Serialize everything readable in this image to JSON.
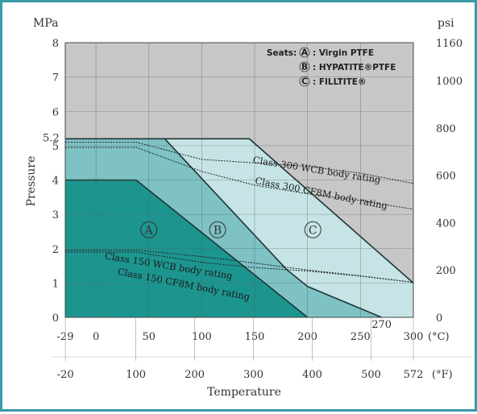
{
  "chart_data": {
    "type": "area",
    "ylabel": "Pressure",
    "xlabel": "Temperature",
    "y_unit_left": "MPa",
    "y_unit_right": "psi",
    "x_unit_top": "(°C)",
    "x_unit_bottom": "(°F)",
    "xlim": [
      -29,
      300
    ],
    "ylim": [
      0,
      8
    ],
    "x_ticks_c": [
      -29,
      0,
      50,
      100,
      150,
      200,
      250,
      300
    ],
    "x_ticks_f": [
      -20,
      100,
      200,
      300,
      400,
      500,
      572
    ],
    "y_ticks_mpa": [
      0,
      1,
      2,
      3,
      4,
      5,
      6,
      7,
      8
    ],
    "y_ticks_psi": [
      0,
      200,
      400,
      600,
      800,
      1000,
      1160
    ],
    "note_270": "270",
    "note_52": "5.2",
    "grid": true,
    "legend_title": "Seats:",
    "legend": [
      {
        "key": "A",
        "label": "Virgin PTFE"
      },
      {
        "key": "B",
        "label": "HYPATITE®PTFE"
      },
      {
        "key": "C",
        "label": "FILLTITE®"
      }
    ],
    "series": [
      {
        "name": "A",
        "color": "#1d958f",
        "x": [
          -29,
          38,
          200
        ],
        "y": [
          4.0,
          4.0,
          0.0
        ]
      },
      {
        "name": "B",
        "color": "#7ec2c4",
        "x": [
          -29,
          65,
          180,
          200,
          270
        ],
        "y": [
          5.2,
          5.2,
          1.4,
          0.9,
          0.0
        ]
      },
      {
        "name": "C",
        "color": "#c6e4e6",
        "x": [
          -29,
          145,
          300
        ],
        "y": [
          5.2,
          5.2,
          1.0
        ]
      }
    ],
    "ratings": [
      {
        "name": "Class 300 WCB body rating",
        "x": [
          -29,
          38,
          100,
          150,
          200,
          250,
          300
        ],
        "y": [
          5.1,
          5.1,
          4.6,
          4.5,
          4.4,
          4.2,
          3.9
        ]
      },
      {
        "name": "Class 300 CF8M body rating",
        "x": [
          -29,
          38,
          100,
          150,
          200,
          250,
          300
        ],
        "y": [
          4.95,
          4.95,
          4.25,
          3.85,
          3.6,
          3.4,
          3.15
        ]
      },
      {
        "name": "Class 150 WCB body rating",
        "x": [
          -29,
          38,
          100,
          150,
          200,
          250,
          300
        ],
        "y": [
          1.96,
          1.96,
          1.77,
          1.58,
          1.38,
          1.21,
          1.02
        ]
      },
      {
        "name": "Class 150 CF8M body rating",
        "x": [
          -29,
          38,
          100,
          150,
          200,
          250,
          300
        ],
        "y": [
          1.9,
          1.9,
          1.6,
          1.45,
          1.35,
          1.2,
          1.02
        ]
      }
    ],
    "zone_labels": [
      {
        "key": "A",
        "x": 50,
        "y": 2.55
      },
      {
        "key": "B",
        "x": 115,
        "y": 2.55
      },
      {
        "key": "C",
        "x": 205,
        "y": 2.55
      }
    ],
    "rating_label_pos": [
      {
        "x": 148,
        "y": 4.5,
        "angle": 9
      },
      {
        "x": 150,
        "y": 3.9,
        "angle": 11
      },
      {
        "x": 8,
        "y": 1.7,
        "angle": 9
      },
      {
        "x": 20,
        "y": 1.25,
        "angle": 11
      }
    ]
  }
}
